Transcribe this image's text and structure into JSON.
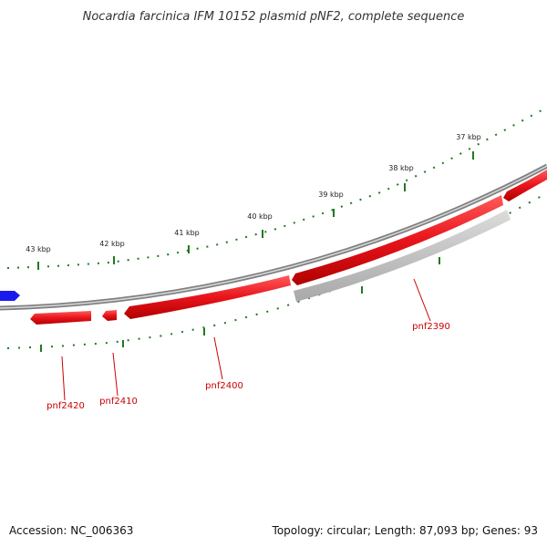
{
  "title": "Nocardia farcinica IFM 10152 plasmid pNF2, complete sequence",
  "footer": {
    "accession": "Accession: NC_006363",
    "summary": "Topology: circular; Length: 87,093 bp; Genes: 93"
  },
  "scale_labels": [
    "37 kbp",
    "38 kbp",
    "39 kbp",
    "40 kbp",
    "41 kbp",
    "42 kbp",
    "43 kbp"
  ],
  "gene_labels": [
    "pnf2390",
    "pnf2400",
    "pnf2410",
    "pnf2420"
  ],
  "colors": {
    "forward_gene": "#e8141b",
    "reverse_gene_gray": "#b8b8b8",
    "other_gene": "#1a1aee",
    "backbone": "#808080",
    "tick": "#1f7a1f",
    "label": "#cc0000"
  }
}
